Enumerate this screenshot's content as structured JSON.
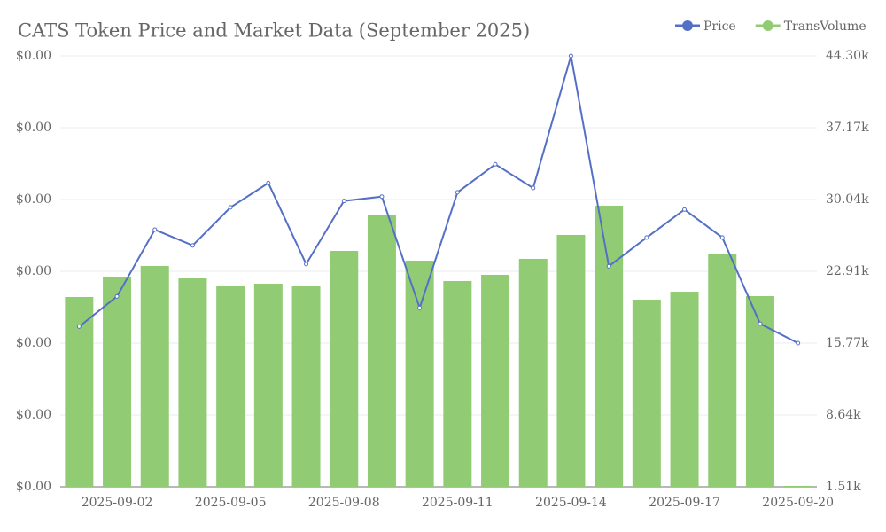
{
  "chart_data": {
    "type": "bar-line",
    "title": "CATS Token Price and Market Data (September 2025)",
    "categories": [
      null,
      "2025-09-02",
      null,
      null,
      "2025-09-05",
      null,
      null,
      "2025-09-08",
      null,
      null,
      "2025-09-11",
      null,
      null,
      "2025-09-14",
      null,
      null,
      "2025-09-17",
      null,
      null,
      "2025-09-20"
    ],
    "series": [
      {
        "name": "Price",
        "type": "line",
        "color": "#5470c6",
        "axis": "y",
        "values": [
          0.000223,
          0.000265,
          0.000358,
          0.000336,
          0.000389,
          0.000423,
          0.00031,
          0.000398,
          0.000404,
          0.000249,
          0.00041,
          0.000449,
          0.000416,
          0.0006,
          0.000307,
          0.000347,
          0.000386,
          0.000347,
          0.000227,
          0.0002
        ]
      },
      {
        "name": "TransVolume",
        "type": "bar",
        "color": "#91cc75",
        "axis": "y2",
        "values": [
          20353,
          22378,
          23434,
          22202,
          21497,
          21673,
          21497,
          24931,
          28541,
          23963,
          21938,
          22554,
          24139,
          26516,
          29422,
          20089,
          20881,
          24667,
          20441,
          1600
        ]
      }
    ],
    "ylim": [
      0,
      0.0006
    ],
    "yticks": [
      {
        "value": 0,
        "label": "$0.00"
      },
      {
        "value": 0.0001,
        "label": "$0.00"
      },
      {
        "value": 0.0002,
        "label": "$0.00"
      },
      {
        "value": 0.0003,
        "label": "$0.00"
      },
      {
        "value": 0.0004,
        "label": "$0.00"
      },
      {
        "value": 0.0005,
        "label": "$0.00"
      },
      {
        "value": 0.0006,
        "label": "$0.00"
      }
    ],
    "y2lim": [
      1510,
      44300
    ],
    "y2ticks": [
      {
        "value": 1510,
        "label": "1.51k"
      },
      {
        "value": 8640,
        "label": "8.64k"
      },
      {
        "value": 15770,
        "label": "15.77k"
      },
      {
        "value": 22910,
        "label": "22.91k"
      },
      {
        "value": 30040,
        "label": "30.04k"
      },
      {
        "value": 37170,
        "label": "37.17k"
      },
      {
        "value": 44300,
        "label": "44.30k"
      }
    ],
    "grid": true,
    "legend": "top-right"
  }
}
